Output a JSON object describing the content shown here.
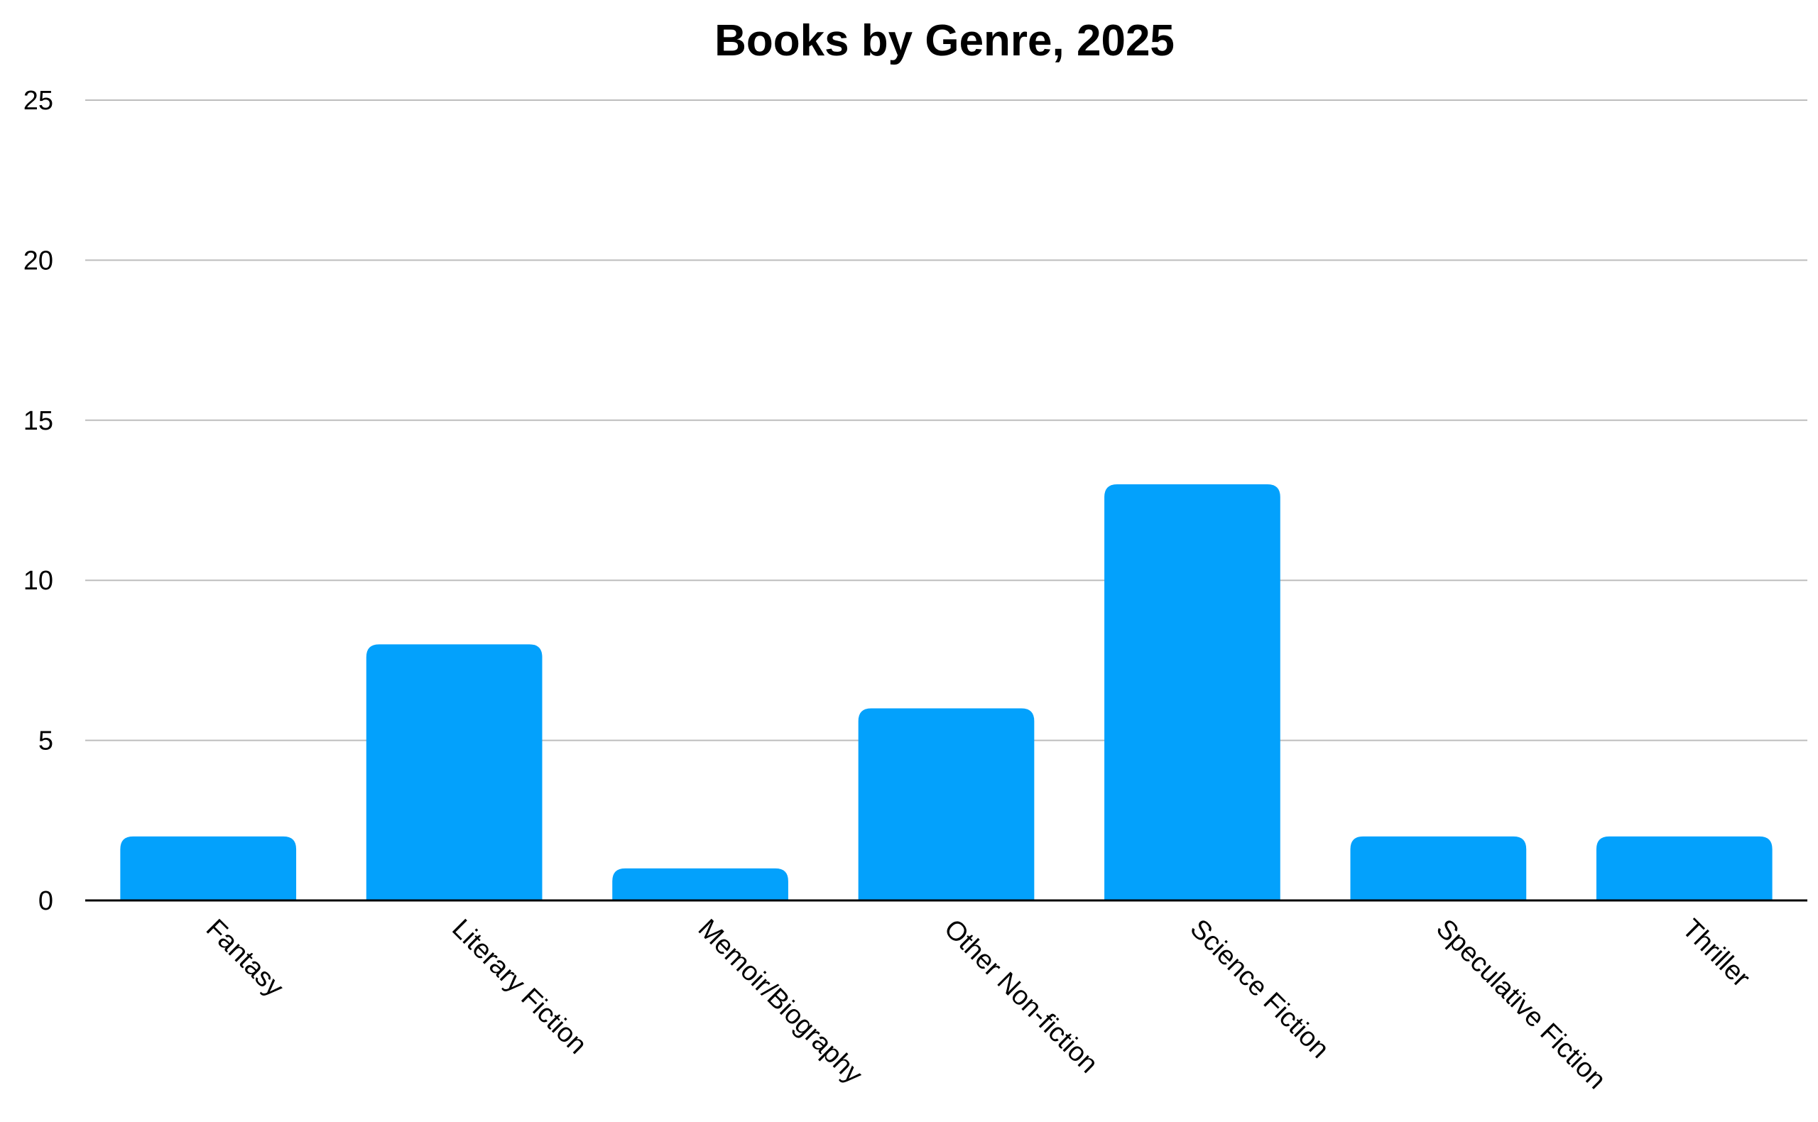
{
  "chart_data": {
    "type": "bar",
    "title": "Books by Genre, 2025",
    "xlabel": "",
    "ylabel": "",
    "categories": [
      "Fantasy",
      "Literary Fiction",
      "Memoir/Biography",
      "Other Non-fiction",
      "Science Fiction",
      "Speculative Fiction",
      "Thriller"
    ],
    "values": [
      2,
      8,
      1,
      6,
      13,
      2,
      2
    ],
    "ylim": [
      0,
      25
    ],
    "yticks": [
      "0",
      "5",
      "10",
      "15",
      "20",
      "25"
    ],
    "grid": true,
    "legend": "none",
    "bar_color": "#03a1fc",
    "gridline_color": "#bdbdbd",
    "axis_color": "#000000"
  }
}
